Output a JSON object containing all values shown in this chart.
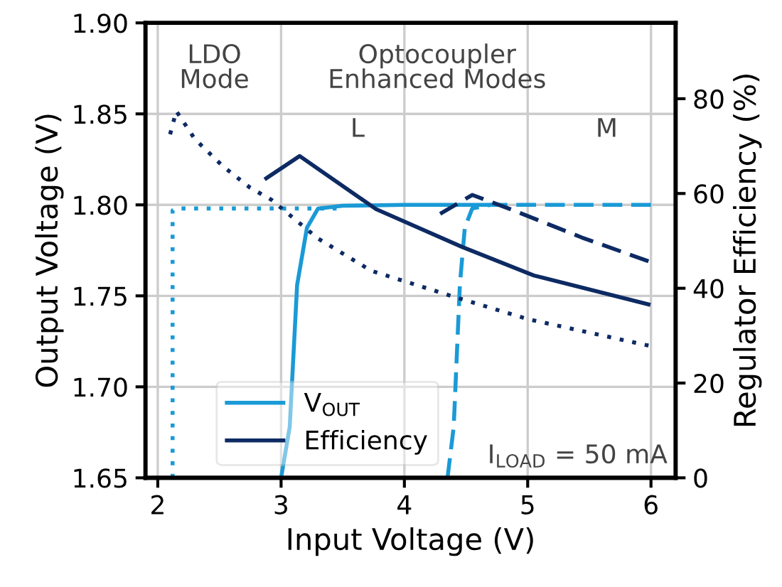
{
  "chart_data": {
    "type": "line",
    "xlabel": "Input Voltage (V)",
    "ylabel": "Output Voltage (V)",
    "y2label": "Regulator Efficiency (%)",
    "series": [
      {
        "name": "V$_{OUT}$",
        "color": "#1a9ad6",
        "line_style": "solid",
        "x": [
          3.0,
          3.07,
          3.13,
          3.21,
          3.3,
          3.5,
          4.0,
          4.7
        ],
        "values": [
          1.65,
          1.678,
          1.756,
          1.7875,
          1.798,
          1.7995,
          1.8,
          1.8
        ]
      },
      {
        "color": "#1a9ad6",
        "line_style": "dashed",
        "x": [
          4.35,
          4.4,
          4.45,
          4.49,
          4.55,
          4.7,
          5.0,
          6.0
        ],
        "values": [
          1.65,
          1.678,
          1.756,
          1.7875,
          1.798,
          1.8,
          1.8,
          1.8
        ]
      },
      {
        "color": "#1a9ad6",
        "line_style": "dotted",
        "x": [
          2.12,
          2.12,
          2.15,
          2.5,
          3.0,
          3.45
        ],
        "values": [
          1.65,
          1.797,
          1.798,
          1.798,
          1.798,
          1.798
        ]
      },
      {
        "name": "Efficiency",
        "color": "#0d2a63",
        "line_style": "solid",
        "axis": "y2",
        "x": [
          2.88,
          3.15,
          3.77,
          4.47,
          5.05,
          5.98
        ],
        "values": [
          63.2,
          67.9,
          56.7,
          48.7,
          42.7,
          36.6
        ]
      },
      {
        "color": "#0d2a63",
        "line_style": "dashed",
        "axis": "y2",
        "x": [
          4.29,
          4.55,
          4.86,
          5.44,
          5.98
        ],
        "values": [
          55.7,
          59.7,
          56.7,
          50.7,
          45.7
        ]
      },
      {
        "color": "#0d2a63",
        "line_style": "dotted",
        "axis": "y2",
        "x": [
          2.1,
          2.15,
          2.3,
          2.53,
          2.75,
          2.92,
          3.3,
          3.73,
          4.39,
          5.0,
          5.98
        ],
        "values": [
          72.5,
          77.4,
          71.5,
          65.7,
          61.2,
          58.7,
          50.5,
          43.7,
          38.3,
          33.5,
          27.9
        ]
      }
    ],
    "xlim": [
      1.9,
      6.2
    ],
    "xticks": [
      2,
      3,
      4,
      5,
      6
    ],
    "ylim": [
      1.65,
      1.9
    ],
    "yticks": [
      {
        "value": 1.65,
        "label": "1.65"
      },
      {
        "value": 1.7,
        "label": "1.70"
      },
      {
        "value": 1.75,
        "label": "1.75"
      },
      {
        "value": 1.8,
        "label": "1.80"
      },
      {
        "value": 1.85,
        "label": "1.85"
      },
      {
        "value": 1.9,
        "label": "1.90"
      }
    ],
    "y2lim": [
      0,
      96
    ],
    "y2ticks": [
      0,
      20,
      40,
      60,
      80
    ],
    "annotations": [
      "LDO\nMode",
      "Optocoupler\nEnhanced Modes",
      "L",
      "M",
      "I$_{LOAD}$ = 50 mA"
    ],
    "grid": true,
    "legend": "bottom left"
  }
}
